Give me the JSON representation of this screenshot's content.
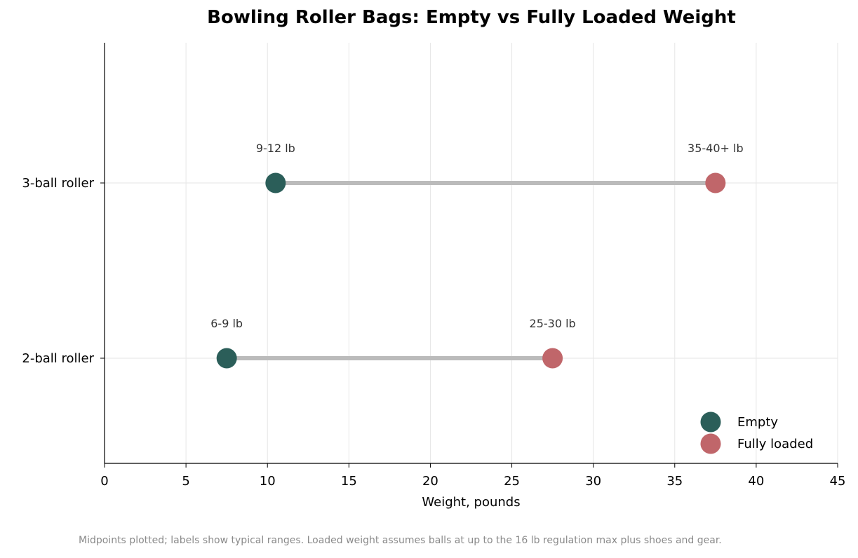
{
  "chart_data": {
    "type": "dumbbell",
    "title": "Bowling Roller Bags: Empty vs Fully Loaded Weight",
    "xlabel": "Weight, pounds",
    "ylabel": "",
    "xlim": [
      0,
      45
    ],
    "xticks": [
      0,
      5,
      10,
      15,
      20,
      25,
      30,
      35,
      40,
      45
    ],
    "grid": true,
    "legend_position": "lower-right",
    "categories": [
      "2-ball roller",
      "3-ball roller"
    ],
    "series": [
      {
        "name": "Empty",
        "color": "#2b5e59",
        "values": [
          7.5,
          10.5
        ],
        "labels": [
          "6-9 lb",
          "9-12 lb"
        ]
      },
      {
        "name": "Fully loaded",
        "color": "#c0666a",
        "values": [
          27.5,
          37.5
        ],
        "labels": [
          "25-30 lb",
          "35-40+ lb"
        ]
      }
    ],
    "connector_color": "#bbbbbb",
    "footnote": "Midpoints plotted; labels show typical ranges. Loaded weight assumes balls at up to the 16 lb regulation max plus shoes and gear."
  }
}
